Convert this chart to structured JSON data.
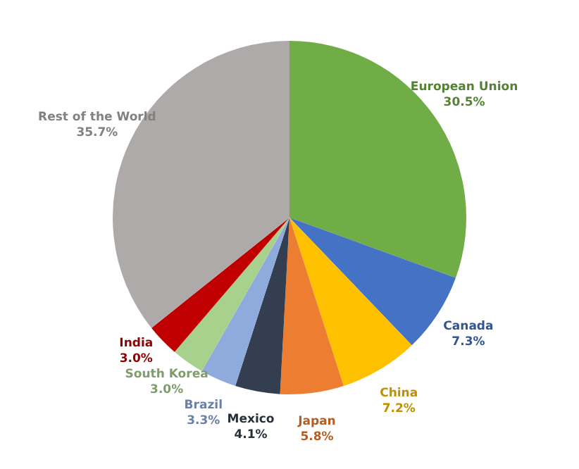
{
  "chart_data": {
    "type": "pie",
    "categories": [
      "European Union",
      "Canada",
      "China",
      "Japan",
      "Mexico",
      "Brazil",
      "South Korea",
      "India",
      "Rest of the World"
    ],
    "values": [
      30.5,
      7.3,
      7.2,
      5.8,
      4.1,
      3.3,
      3.0,
      3.0,
      35.7
    ],
    "value_labels": [
      "30.5%",
      "7.3%",
      "7.2%",
      "5.8%",
      "4.1%",
      "3.3%",
      "3.0%",
      "3.0%",
      "35.7%"
    ],
    "colors": [
      "#70ad47",
      "#4472c4",
      "#ffc000",
      "#ed7d31",
      "#333f50",
      "#8faadc",
      "#a9d18e",
      "#c00000",
      "#aeaaaa"
    ],
    "legend": false
  }
}
